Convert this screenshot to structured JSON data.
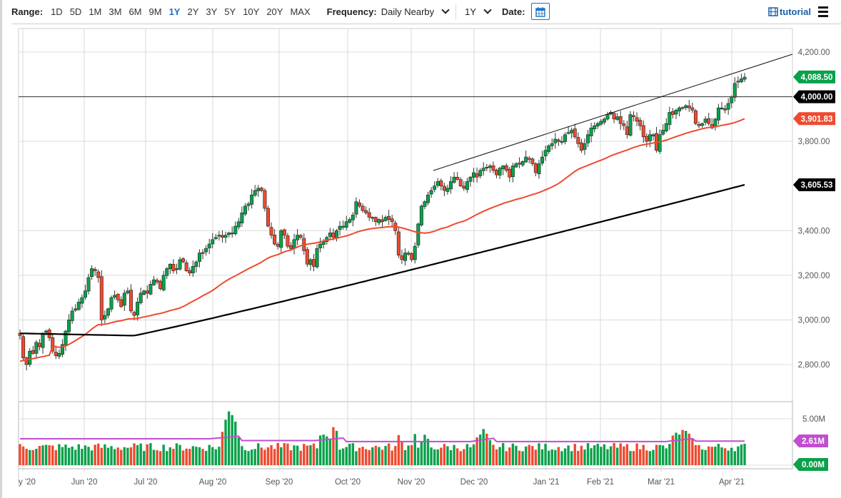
{
  "toolbar": {
    "range_label": "Range:",
    "ranges": [
      "1D",
      "5D",
      "1M",
      "3M",
      "6M",
      "9M",
      "1Y",
      "2Y",
      "3Y",
      "5Y",
      "10Y",
      "20Y",
      "MAX"
    ],
    "active_range": "1Y",
    "frequency_label": "Frequency:",
    "frequency_value": "Daily Nearby",
    "period_value": "1Y",
    "date_label": "Date:",
    "calendar_icon": "calendar-icon",
    "tutorial_label": "tutorial",
    "tutorial_icon": "film-icon",
    "menu_icon": "hamburger-menu-icon"
  },
  "colors": {
    "up": "#0aa14b",
    "down": "#ee4a2f",
    "ma_short": "#ee4a2f",
    "ma_long": "#000000",
    "vol_ma": "#c04fce",
    "grid": "#e3e3e3",
    "last_price_tag": "#0aa14b",
    "level_tag": "#000000",
    "ma_short_tag": "#ee4a2f",
    "vol_ma_tag": "#c04fce",
    "vol_zero_tag": "#0aa14b",
    "accent": "#1a73c9"
  },
  "chart_data": {
    "type": "candlestick",
    "title": "",
    "ylabel": "",
    "ylim": [
      2720,
      4260
    ],
    "y_ticks": [
      "4,200.00",
      "3,800.00",
      "3,400.00",
      "3,200.00",
      "3,000.00",
      "2,800.00"
    ],
    "x_tick_labels": [
      "y '20",
      "Jun '20",
      "Jul '20",
      "Aug '20",
      "Sep '20",
      "Oct '20",
      "Nov '20",
      "Dec '20",
      "Jan '21",
      "Feb '21",
      "Mar '21",
      "Apr '21"
    ],
    "price_tags": [
      {
        "label": "4,088.50",
        "value": 4088.5,
        "kind": "last_price"
      },
      {
        "label": "4,000.00",
        "value": 4000,
        "kind": "horizontal_level"
      },
      {
        "label": "3,901.83",
        "value": 3901.83,
        "kind": "ma_short"
      },
      {
        "label": "3,605.53",
        "value": 3605.53,
        "kind": "ma_long"
      }
    ],
    "horizontal_line": 4000,
    "trendline": {
      "from_date": "Nov '20",
      "from_price": 3670,
      "to_date": "Apr '21",
      "to_price": 4200
    },
    "series": [
      {
        "name": "Close",
        "values": [
          2930,
          2830,
          2800,
          2860,
          2850,
          2900,
          2880,
          2940,
          2950,
          2920,
          2860,
          2840,
          2850,
          2890,
          2950,
          3000,
          3040,
          3050,
          3080,
          3100,
          3130,
          3190,
          3230,
          3220,
          3190,
          3000,
          3020,
          3050,
          3100,
          3110,
          3090,
          3060,
          3120,
          3130,
          3040,
          3020,
          3080,
          3120,
          3130,
          3120,
          3160,
          3180,
          3170,
          3140,
          3200,
          3230,
          3250,
          3220,
          3230,
          3270,
          3260,
          3220,
          3210,
          3240,
          3260,
          3300,
          3300,
          3320,
          3340,
          3360,
          3370,
          3380,
          3370,
          3380,
          3390,
          3390,
          3420,
          3440,
          3480,
          3510,
          3520,
          3560,
          3580,
          3590,
          3580,
          3500,
          3420,
          3380,
          3340,
          3330,
          3400,
          3380,
          3330,
          3320,
          3360,
          3380,
          3370,
          3310,
          3250,
          3270,
          3240,
          3320,
          3340,
          3350,
          3370,
          3390,
          3370,
          3400,
          3420,
          3420,
          3440,
          3450,
          3470,
          3530,
          3510,
          3490,
          3480,
          3460,
          3460,
          3440,
          3450,
          3440,
          3460,
          3450,
          3440,
          3400,
          3290,
          3270,
          3300,
          3300,
          3270,
          3330,
          3430,
          3510,
          3530,
          3560,
          3580,
          3600,
          3620,
          3600,
          3580,
          3590,
          3620,
          3640,
          3630,
          3600,
          3590,
          3620,
          3640,
          3660,
          3640,
          3670,
          3680,
          3680,
          3690,
          3670,
          3650,
          3680,
          3690,
          3670,
          3640,
          3690,
          3700,
          3700,
          3710,
          3730,
          3720,
          3700,
          3660,
          3700,
          3730,
          3760,
          3780,
          3790,
          3810,
          3800,
          3800,
          3830,
          3840,
          3850,
          3820,
          3790,
          3760,
          3790,
          3830,
          3860,
          3870,
          3880,
          3890,
          3900,
          3920,
          3930,
          3900,
          3910,
          3880,
          3870,
          3830,
          3920,
          3910,
          3890,
          3870,
          3820,
          3800,
          3830,
          3830,
          3760,
          3830,
          3850,
          3880,
          3930,
          3920,
          3940,
          3950,
          3950,
          3960,
          3950,
          3940,
          3880,
          3870,
          3880,
          3900,
          3880,
          3860,
          3900,
          3950,
          3950,
          3940,
          3970,
          4000,
          4060,
          4070,
          4080,
          4088
        ]
      },
      {
        "name": "MA short",
        "last": 3901.83
      },
      {
        "name": "MA long",
        "last": 3605.53
      }
    ],
    "volume_panel": {
      "y_ticks": [
        "5.00M"
      ],
      "tags": [
        {
          "label": "2.61M",
          "value": 2.61,
          "kind": "volume_ma"
        },
        {
          "label": "0.00M",
          "value": 0,
          "kind": "zero"
        }
      ],
      "ylim": [
        0,
        6.2
      ]
    }
  }
}
